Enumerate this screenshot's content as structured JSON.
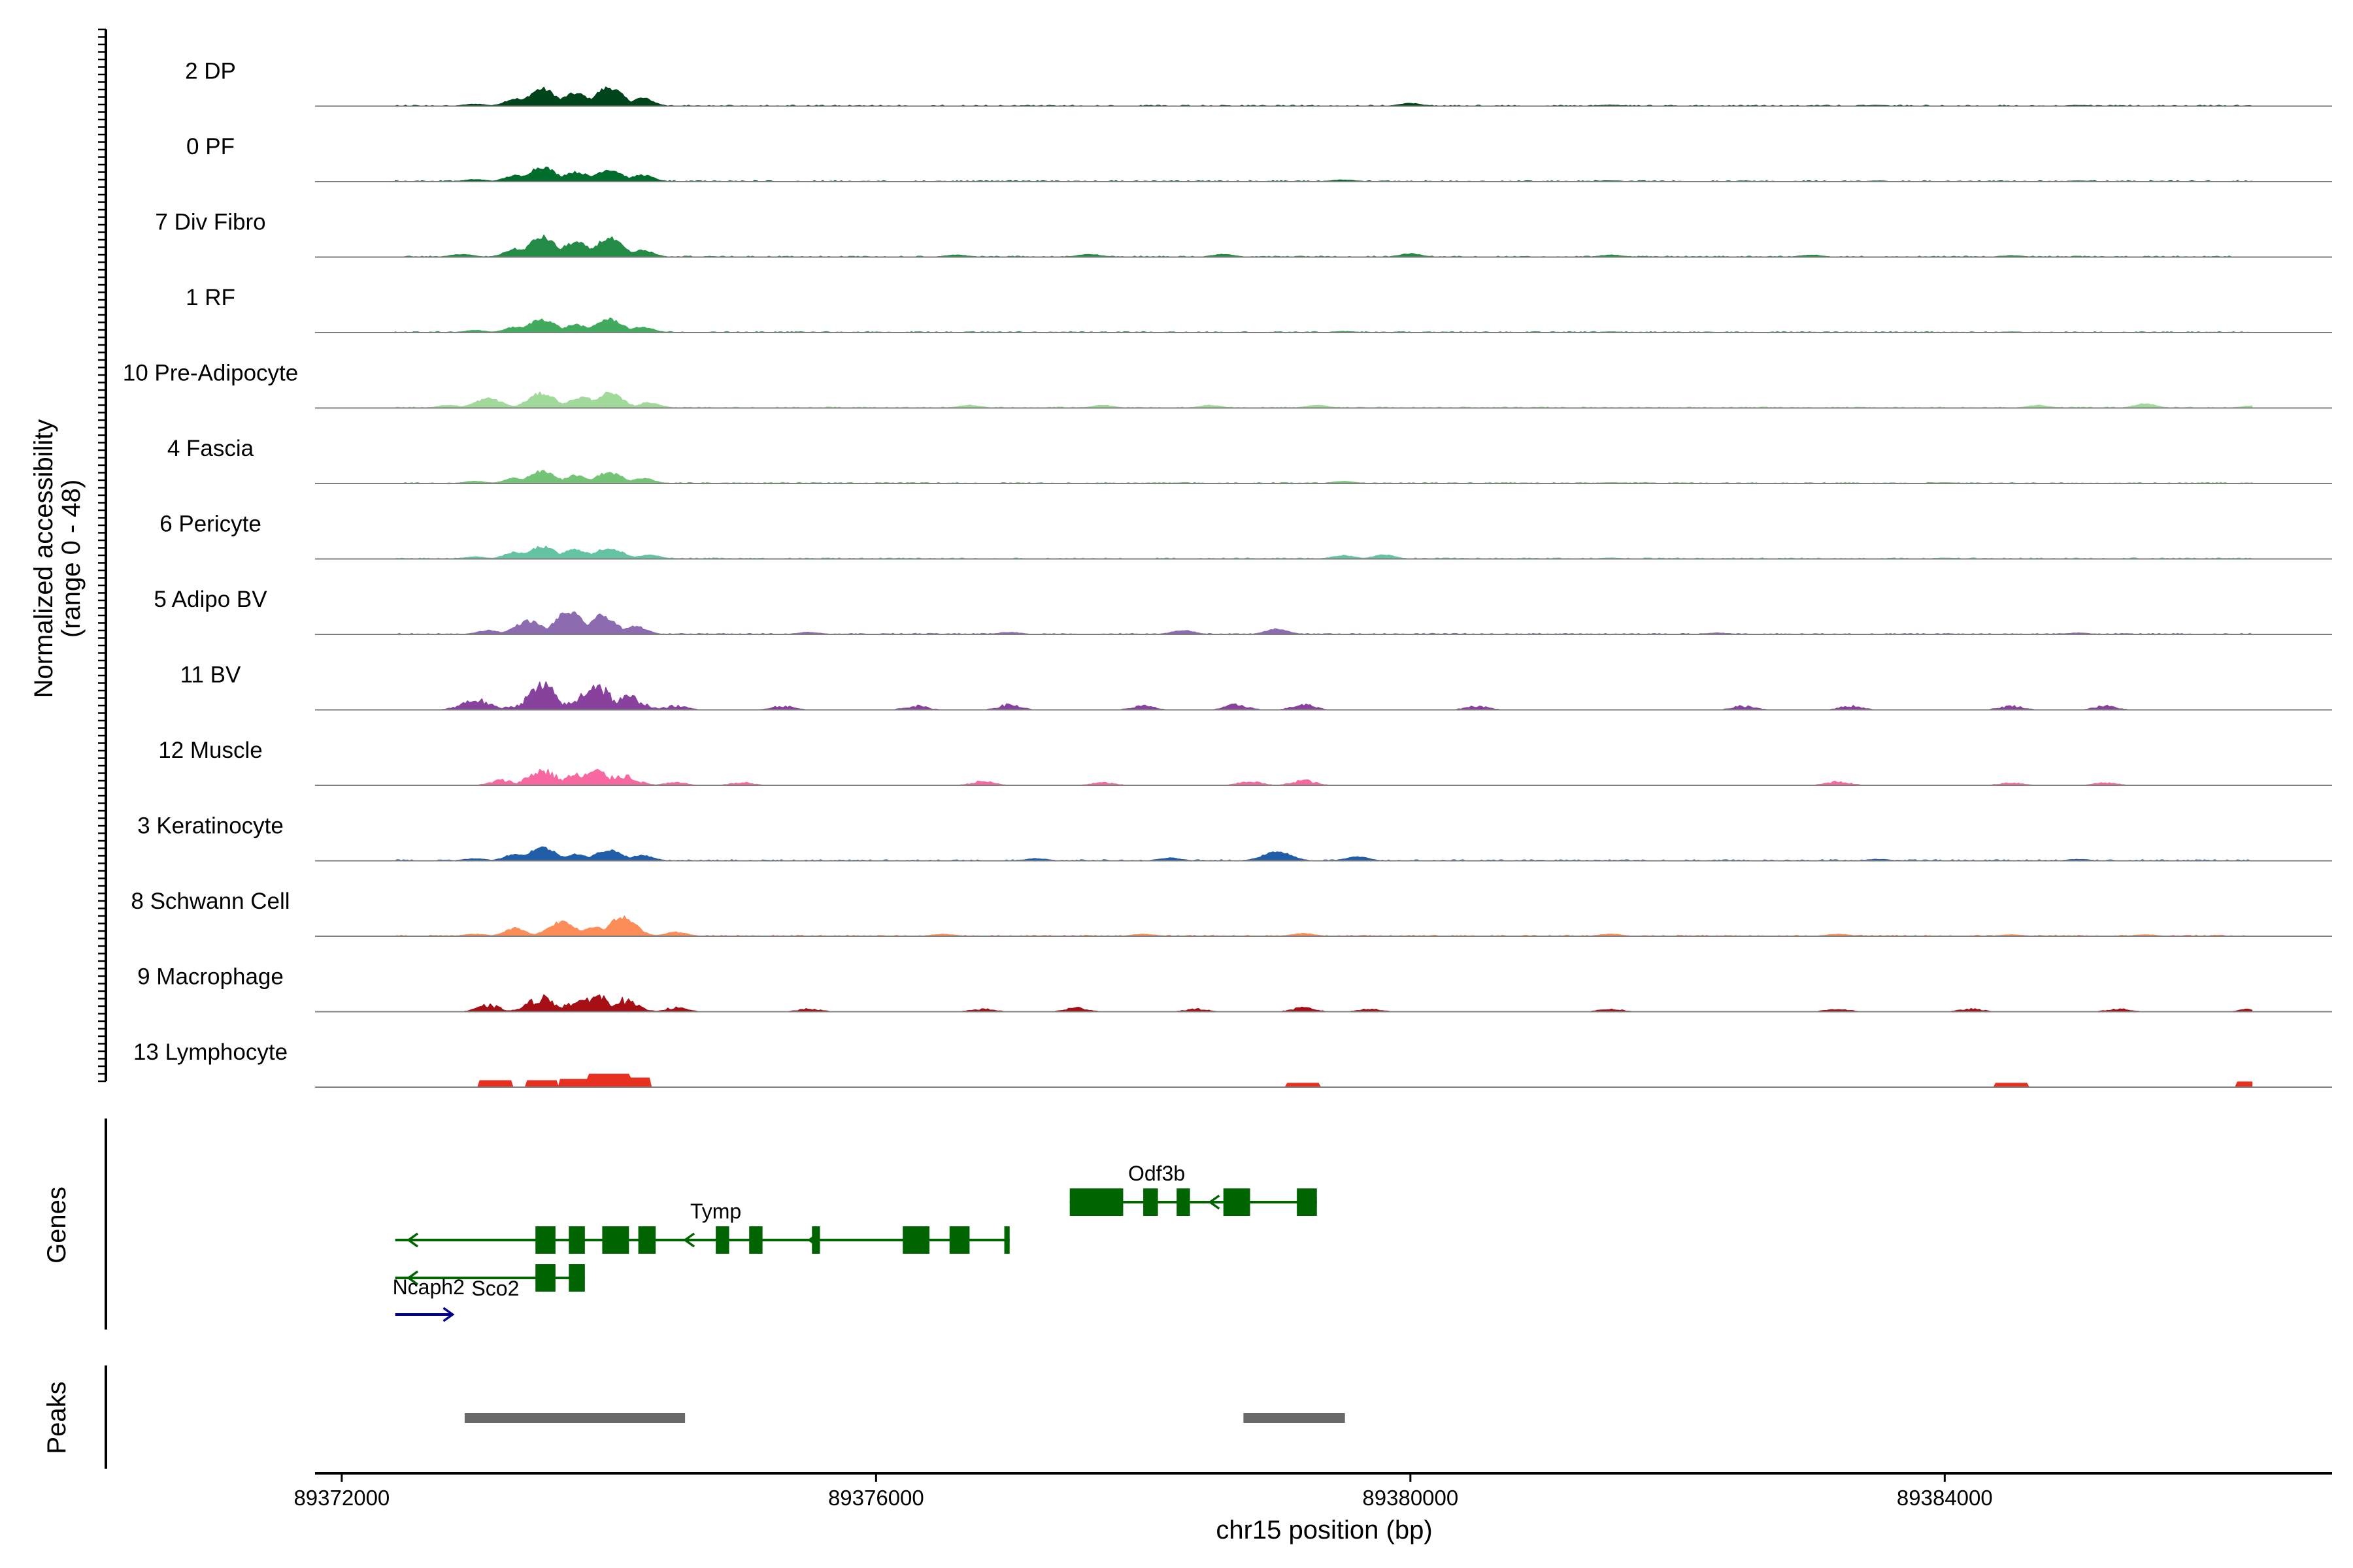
{
  "chart_data": {
    "type": "area",
    "ylabel_line1": "Normalized accessibility",
    "ylabel_line2": "(range 0 - 48)",
    "xlabel": "chr15 position (bp)",
    "xlim": [
      89371800,
      89386900
    ],
    "ylim": [
      0,
      48
    ],
    "x_ticks": [
      89372000,
      89376000,
      89380000,
      89384000
    ],
    "x_tick_labels": [
      "89372000",
      "89376000",
      "89380000",
      "89384000"
    ],
    "panel_labels": {
      "genes": "Genes",
      "peaks": "Peaks"
    },
    "tracks": [
      {
        "name": "2 DP",
        "color": "#00441B",
        "style": "smooth",
        "peaks": [
          [
            89373000,
            1.5
          ],
          [
            89373300,
            5.5
          ],
          [
            89373500,
            13
          ],
          [
            89373750,
            9.5
          ],
          [
            89374000,
            14
          ],
          [
            89374250,
            6
          ],
          [
            89380000,
            2
          ],
          [
            89381500,
            0.8
          ],
          [
            89383500,
            0.6
          ],
          [
            89385000,
            0.6
          ]
        ]
      },
      {
        "name": "0 PF",
        "color": "#006D2C",
        "style": "smooth",
        "peaks": [
          [
            89373000,
            1.5
          ],
          [
            89373300,
            4.5
          ],
          [
            89373500,
            11
          ],
          [
            89373750,
            7
          ],
          [
            89374000,
            9
          ],
          [
            89374250,
            5
          ],
          [
            89379500,
            1.2
          ],
          [
            89381500,
            0.6
          ],
          [
            89383500,
            0.5
          ],
          [
            89385000,
            0.5
          ]
        ]
      },
      {
        "name": "7 Div Fibro",
        "color": "#238B45",
        "style": "smooth",
        "peaks": [
          [
            89372900,
            2
          ],
          [
            89373300,
            6
          ],
          [
            89373500,
            15
          ],
          [
            89373750,
            11
          ],
          [
            89374000,
            14
          ],
          [
            89374250,
            5
          ],
          [
            89376600,
            1.5
          ],
          [
            89377600,
            2
          ],
          [
            89378600,
            2
          ],
          [
            89380000,
            2.5
          ],
          [
            89381500,
            1.5
          ],
          [
            89383000,
            1.5
          ],
          [
            89384500,
            1
          ]
        ]
      },
      {
        "name": "1 RF",
        "color": "#41AB5D",
        "style": "smooth",
        "peaks": [
          [
            89373000,
            1.5
          ],
          [
            89373300,
            4
          ],
          [
            89373500,
            10
          ],
          [
            89373750,
            6
          ],
          [
            89374000,
            10
          ],
          [
            89374250,
            4
          ],
          [
            89379500,
            0.8
          ],
          [
            89381500,
            0.5
          ],
          [
            89384500,
            0.5
          ]
        ]
      },
      {
        "name": "10 Pre-Adipocyte",
        "color": "#A1D99B",
        "style": "smooth",
        "peaks": [
          [
            89372800,
            2
          ],
          [
            89373100,
            7
          ],
          [
            89373500,
            11
          ],
          [
            89373800,
            8
          ],
          [
            89374000,
            11
          ],
          [
            89374300,
            4
          ],
          [
            89376700,
            2
          ],
          [
            89377700,
            2
          ],
          [
            89378500,
            2
          ],
          [
            89379300,
            2
          ],
          [
            89384700,
            2
          ],
          [
            89385500,
            3
          ],
          [
            89386300,
            1.5
          ]
        ]
      },
      {
        "name": "4 Fascia",
        "color": "#74C476",
        "style": "smooth",
        "peaks": [
          [
            89373000,
            1.5
          ],
          [
            89373300,
            4
          ],
          [
            89373500,
            9
          ],
          [
            89373750,
            6
          ],
          [
            89374000,
            8
          ],
          [
            89374250,
            4
          ],
          [
            89379500,
            1.5
          ],
          [
            89381500,
            0.6
          ],
          [
            89384000,
            0.6
          ]
        ]
      },
      {
        "name": "6 Pericyte",
        "color": "#66C2A5",
        "style": "smooth",
        "peaks": [
          [
            89373000,
            1.5
          ],
          [
            89373300,
            5
          ],
          [
            89373500,
            9
          ],
          [
            89373750,
            7
          ],
          [
            89374000,
            8
          ],
          [
            89374300,
            3
          ],
          [
            89379500,
            2.5
          ],
          [
            89379800,
            3
          ],
          [
            89381500,
            0.6
          ],
          [
            89384000,
            0.6
          ]
        ]
      },
      {
        "name": "5 Adipo BV",
        "color": "#8C6BB1",
        "style": "smooth",
        "peaks": [
          [
            89373100,
            3
          ],
          [
            89373400,
            10
          ],
          [
            89373700,
            17
          ],
          [
            89373950,
            14
          ],
          [
            89374200,
            6
          ],
          [
            89375500,
            1.5
          ],
          [
            89377000,
            1.5
          ],
          [
            89378300,
            3
          ],
          [
            89379000,
            4
          ],
          [
            89382300,
            1
          ],
          [
            89385000,
            1
          ]
        ]
      },
      {
        "name": "11 BV",
        "color": "#88419D",
        "style": "spiky",
        "peaks": [
          [
            89373000,
            8
          ],
          [
            89373300,
            3
          ],
          [
            89373500,
            19
          ],
          [
            89373750,
            6
          ],
          [
            89373900,
            21
          ],
          [
            89374150,
            10
          ],
          [
            89374500,
            3
          ],
          [
            89375300,
            3
          ],
          [
            89376300,
            3
          ],
          [
            89377000,
            4
          ],
          [
            89378000,
            3
          ],
          [
            89378700,
            4
          ],
          [
            89379200,
            4
          ],
          [
            89380500,
            3
          ],
          [
            89382500,
            3
          ],
          [
            89383300,
            3
          ],
          [
            89384500,
            3
          ],
          [
            89385200,
            3
          ]
        ]
      },
      {
        "name": "12 Muscle",
        "color": "#F768A1",
        "style": "spiky",
        "peaks": [
          [
            89373200,
            4
          ],
          [
            89373500,
            12
          ],
          [
            89373750,
            8
          ],
          [
            89373900,
            11
          ],
          [
            89374100,
            8
          ],
          [
            89374500,
            2
          ],
          [
            89375000,
            2
          ],
          [
            89376800,
            3
          ],
          [
            89377700,
            2
          ],
          [
            89378800,
            3
          ],
          [
            89379200,
            4
          ],
          [
            89383200,
            3
          ],
          [
            89384500,
            2
          ],
          [
            89385200,
            2
          ]
        ]
      },
      {
        "name": "3 Keratinocyte",
        "color": "#225EA8",
        "style": "smooth",
        "peaks": [
          [
            89373000,
            1.5
          ],
          [
            89373300,
            5
          ],
          [
            89373500,
            10
          ],
          [
            89373750,
            5
          ],
          [
            89374000,
            8
          ],
          [
            89374250,
            4
          ],
          [
            89377200,
            1.5
          ],
          [
            89378200,
            2
          ],
          [
            89379000,
            7
          ],
          [
            89379600,
            3
          ],
          [
            89383500,
            1
          ],
          [
            89385000,
            1
          ]
        ]
      },
      {
        "name": "8 Schwann Cell",
        "color": "#FC8D59",
        "style": "smooth",
        "peaks": [
          [
            89373000,
            1.5
          ],
          [
            89373300,
            6
          ],
          [
            89373650,
            11
          ],
          [
            89373900,
            7
          ],
          [
            89374100,
            14
          ],
          [
            89374500,
            3
          ],
          [
            89376500,
            1.5
          ],
          [
            89378000,
            1.5
          ],
          [
            89379200,
            2
          ],
          [
            89381500,
            1.5
          ],
          [
            89383200,
            1.5
          ],
          [
            89384500,
            1
          ],
          [
            89385500,
            1
          ]
        ]
      },
      {
        "name": "9 Macrophage",
        "color": "#A50F15",
        "style": "spiky",
        "peaks": [
          [
            89373100,
            5
          ],
          [
            89373500,
            11
          ],
          [
            89373750,
            7
          ],
          [
            89373900,
            13
          ],
          [
            89374100,
            9
          ],
          [
            89374500,
            3
          ],
          [
            89375500,
            2
          ],
          [
            89376800,
            2
          ],
          [
            89377500,
            3
          ],
          [
            89378400,
            2
          ],
          [
            89379200,
            3
          ],
          [
            89379700,
            2
          ],
          [
            89381500,
            2
          ],
          [
            89383200,
            2
          ],
          [
            89384200,
            2
          ],
          [
            89385300,
            2
          ],
          [
            89386300,
            2
          ]
        ]
      },
      {
        "name": "13 Lymphocyte",
        "color": "#E7301F",
        "style": "blocky",
        "peaks": [
          [
            89373150,
            5
          ],
          [
            89373500,
            5
          ],
          [
            89373750,
            6
          ],
          [
            89374000,
            10
          ],
          [
            89374150,
            7
          ],
          [
            89379200,
            3
          ],
          [
            89384500,
            3
          ],
          [
            89386300,
            4
          ]
        ]
      }
    ],
    "genes": {
      "color": "#006400",
      "forward_color": "#00008B",
      "items": [
        {
          "name": "Tymp",
          "line": [
            89372400,
            89377000
          ],
          "strand": "-",
          "exons": [
            [
              89373450,
              89373600
            ],
            [
              89373700,
              89373820
            ],
            [
              89373950,
              89374150
            ],
            [
              89374220,
              89374350
            ],
            [
              89374800,
              89374900
            ],
            [
              89375050,
              89375150
            ],
            [
              89375520,
              89375580
            ],
            [
              89376200,
              89376400
            ],
            [
              89376550,
              89376700
            ],
            [
              89376960,
              89377000
            ]
          ],
          "arrows": [
            89372500,
            89374570,
            89375500,
            89376550
          ]
        },
        {
          "name": "Odf3b",
          "line": [
            89377450,
            89379300
          ],
          "strand": "-",
          "exons": [
            [
              89377450,
              89377850
            ],
            [
              89378000,
              89378110
            ],
            [
              89378250,
              89378350
            ],
            [
              89378600,
              89378800
            ],
            [
              89379150,
              89379300
            ]
          ],
          "arrows": [
            89378500
          ]
        },
        {
          "name": "Sco2",
          "line": [
            89372400,
            89373820
          ],
          "strand": "-",
          "exons": [
            [
              89373450,
              89373600
            ],
            [
              89373700,
              89373820
            ]
          ],
          "arrows": [
            89372500
          ]
        },
        {
          "name": "Ncaph2",
          "line": [
            89372400,
            89372830
          ],
          "strand": "+",
          "exons": [],
          "arrows": [
            89372830
          ]
        }
      ]
    },
    "peaks_track": {
      "color": "#696969",
      "regions": [
        [
          89372920,
          89374570
        ],
        [
          89378750,
          89379510
        ]
      ]
    }
  }
}
